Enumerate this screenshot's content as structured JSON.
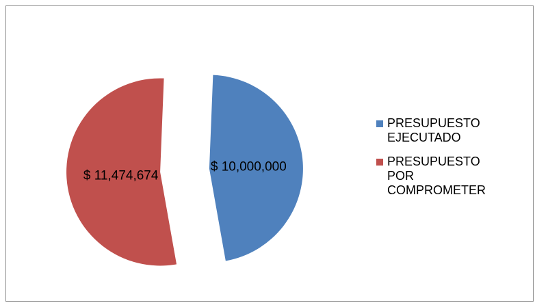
{
  "chart_data": {
    "type": "pie",
    "exploded": true,
    "legend_position": "right",
    "series": [
      {
        "name": "PRESUPUESTO EJECUTADO",
        "value": 10000000,
        "label": "$ 10,000,000",
        "color": "#4F81BD"
      },
      {
        "name": "PRESUPUESTO POR COMPROMETER",
        "value": 11474674,
        "label": "$ 11,474,674",
        "color": "#C0504D"
      }
    ]
  }
}
